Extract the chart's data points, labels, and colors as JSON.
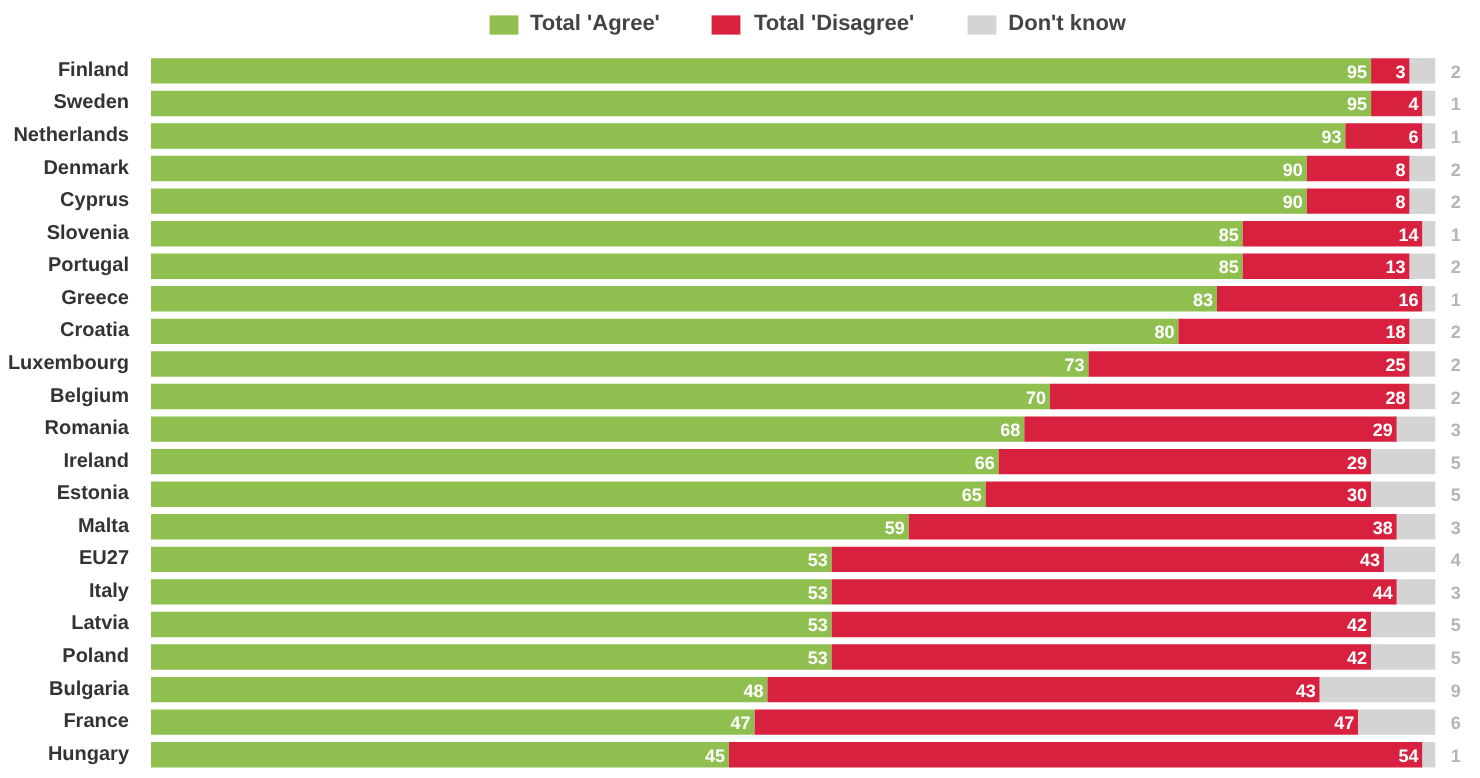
{
  "chart_data": {
    "type": "bar",
    "orientation": "horizontal",
    "stacked": true,
    "data_labels": true,
    "legend": "top",
    "grid": false,
    "tick_labels": "y",
    "categories": [
      "Finland",
      "Sweden",
      "Netherlands",
      "Denmark",
      "Cyprus",
      "Slovenia",
      "Portugal",
      "Greece",
      "Croatia",
      "Luxembourg",
      "Belgium",
      "Romania",
      "Ireland",
      "Estonia",
      "Malta",
      "EU27",
      "Italy",
      "Latvia",
      "Poland",
      "Bulgaria",
      "France",
      "Hungary"
    ],
    "series": [
      {
        "name": "Total 'Agree'",
        "color": "#8fc04f",
        "values": [
          95,
          95,
          93,
          90,
          90,
          85,
          85,
          83,
          80,
          73,
          70,
          68,
          66,
          65,
          59,
          53,
          53,
          53,
          53,
          48,
          47,
          45
        ]
      },
      {
        "name": "Total 'Disagree'",
        "color": "#d7213f",
        "values": [
          3,
          4,
          6,
          8,
          8,
          14,
          13,
          16,
          18,
          25,
          28,
          29,
          29,
          30,
          38,
          43,
          44,
          42,
          42,
          43,
          47,
          54
        ]
      },
      {
        "name": "Don't know",
        "color": "#d4d4d4",
        "values": [
          2,
          1,
          1,
          2,
          2,
          1,
          2,
          1,
          2,
          2,
          2,
          3,
          5,
          5,
          3,
          4,
          3,
          5,
          5,
          9,
          6,
          1
        ]
      }
    ]
  }
}
